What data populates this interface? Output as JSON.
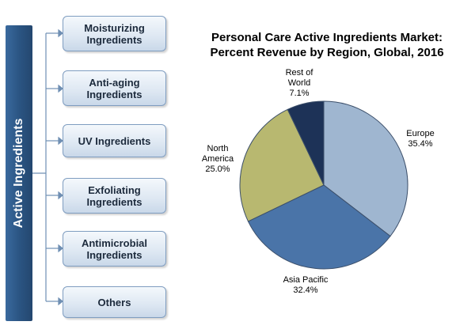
{
  "sidebar": {
    "title": "Active Ingredients",
    "items": [
      {
        "label": "Moisturizing\nIngredients"
      },
      {
        "label": "Anti-aging\nIngredients"
      },
      {
        "label": "UV Ingredients"
      },
      {
        "label": "Exfoliating\nIngredients"
      },
      {
        "label": "Antimicrobial\nIngredients"
      },
      {
        "label": "Others"
      }
    ]
  },
  "colors": {
    "europe": "#9fb6d0",
    "asia_pacific": "#4a74a8",
    "north_america": "#b8b870",
    "rest_of_world": "#1d3257",
    "sidebar_bar": "#2b5583",
    "box_border": "#7f9dc0"
  },
  "chart_data": {
    "type": "pie",
    "title": "Personal Care Active Ingredients Market:\nPercent Revenue by Region, Global, 2016",
    "slices": [
      {
        "label": "Europe",
        "value": 35.4,
        "value_label": "35.4%",
        "color": "#9fb6d0"
      },
      {
        "label": "Asia Pacific",
        "value": 32.4,
        "value_label": "32.4%",
        "color": "#4a74a8"
      },
      {
        "label": "North\nAmerica",
        "value": 25.0,
        "value_label": "25.0%",
        "color": "#b8b870"
      },
      {
        "label": "Rest of\nWorld",
        "value": 7.1,
        "value_label": "7.1%",
        "color": "#1d3257"
      }
    ],
    "legend": "none"
  }
}
